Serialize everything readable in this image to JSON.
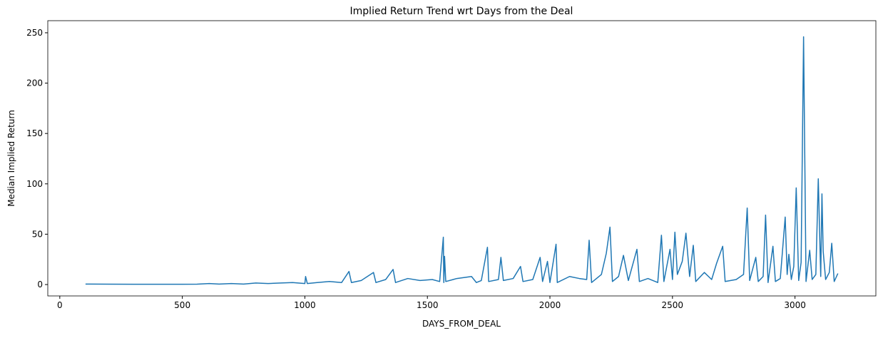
{
  "chart_data": {
    "type": "line",
    "title": "Implied Return Trend wrt Days from the Deal",
    "x_label": "DAYS_FROM_DEAL",
    "y_label": "Median Implied Return",
    "x": [
      105,
      200,
      300,
      400,
      500,
      560,
      610,
      650,
      700,
      750,
      800,
      850,
      900,
      950,
      1000,
      1003,
      1010,
      1050,
      1100,
      1150,
      1180,
      1190,
      1230,
      1280,
      1290,
      1330,
      1360,
      1370,
      1420,
      1470,
      1520,
      1550,
      1565,
      1567,
      1570,
      1575,
      1620,
      1680,
      1700,
      1720,
      1745,
      1750,
      1790,
      1800,
      1810,
      1850,
      1880,
      1890,
      1930,
      1960,
      1970,
      1990,
      2000,
      2025,
      2030,
      2080,
      2120,
      2150,
      2160,
      2170,
      2210,
      2230,
      2245,
      2255,
      2280,
      2300,
      2320,
      2355,
      2365,
      2400,
      2440,
      2455,
      2465,
      2490,
      2500,
      2510,
      2520,
      2540,
      2555,
      2570,
      2585,
      2595,
      2630,
      2660,
      2680,
      2705,
      2715,
      2760,
      2790,
      2805,
      2815,
      2840,
      2850,
      2870,
      2880,
      2890,
      2910,
      2920,
      2940,
      2960,
      2968,
      2975,
      2985,
      2995,
      3005,
      3015,
      3025,
      3035,
      3045,
      3060,
      3070,
      3085,
      3095,
      3105,
      3110,
      3115,
      3125,
      3140,
      3150,
      3160,
      3175
    ],
    "series": [
      {
        "color": "#1f77b4",
        "values": [
          0.5,
          0.4,
          0.3,
          0.3,
          0.3,
          0.4,
          1,
          0.5,
          1,
          0.5,
          1.5,
          1,
          1.5,
          2,
          1,
          8,
          1,
          2,
          3,
          2,
          13,
          2,
          4,
          12,
          2,
          5,
          15,
          2,
          6,
          4,
          5,
          3,
          47,
          2,
          28,
          3,
          6,
          8,
          2,
          4,
          37,
          3,
          5,
          27,
          4,
          6,
          18,
          3,
          5,
          27,
          3,
          23,
          2,
          40,
          2,
          8,
          6,
          5,
          44,
          2,
          10,
          31,
          57,
          3,
          8,
          29,
          4,
          35,
          3,
          6,
          2,
          49,
          3,
          35,
          5,
          52,
          10,
          23,
          51,
          8,
          39,
          3,
          12,
          5,
          21,
          38,
          3,
          5,
          10,
          76,
          4,
          27,
          3,
          8,
          69,
          2,
          38,
          3,
          6,
          67,
          10,
          30,
          5,
          18,
          96,
          4,
          22,
          246,
          3,
          34,
          5,
          10,
          105,
          8,
          90,
          33,
          5,
          12,
          41,
          3,
          11
        ]
      }
    ],
    "xlim": [
      -49,
      3330
    ],
    "ylim": [
      -11.3,
      262
    ],
    "xticks": [
      0,
      500,
      1000,
      1500,
      2000,
      2500,
      3000
    ],
    "yticks": [
      0,
      50,
      100,
      150,
      200,
      250
    ]
  }
}
